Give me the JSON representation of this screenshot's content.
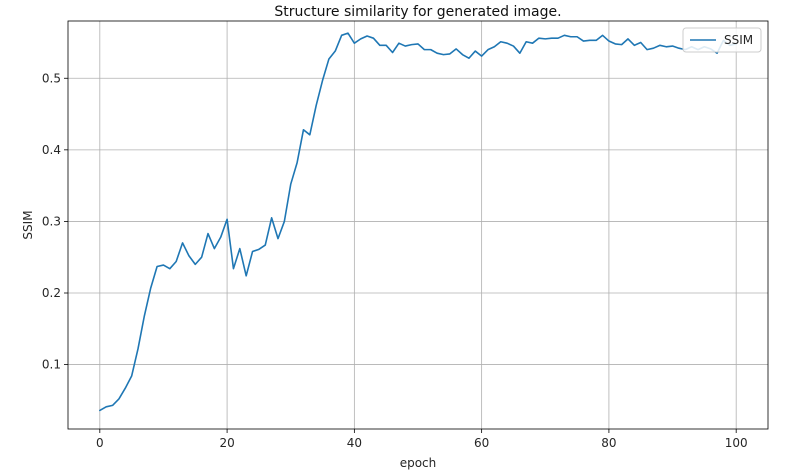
{
  "chart_data": {
    "type": "line",
    "title": "Structure similarity for generated image.",
    "xlabel": "epoch",
    "ylabel": "SSIM",
    "xlim": [
      -5,
      105
    ],
    "ylim": [
      0.01,
      0.58
    ],
    "xticks": [
      0,
      20,
      40,
      60,
      80,
      100
    ],
    "yticks": [
      0.1,
      0.2,
      0.3,
      0.4,
      0.5
    ],
    "grid": true,
    "legend_position": "top-right",
    "series": [
      {
        "name": "SSIM",
        "color": "#1f77b4",
        "x": [
          0,
          1,
          2,
          3,
          4,
          5,
          6,
          7,
          8,
          9,
          10,
          11,
          12,
          13,
          14,
          15,
          16,
          17,
          18,
          19,
          20,
          21,
          22,
          23,
          24,
          25,
          26,
          27,
          28,
          29,
          30,
          31,
          32,
          33,
          34,
          35,
          36,
          37,
          38,
          39,
          40,
          41,
          42,
          43,
          44,
          45,
          46,
          47,
          48,
          49,
          50,
          51,
          52,
          53,
          54,
          55,
          56,
          57,
          58,
          59,
          60,
          61,
          62,
          63,
          64,
          65,
          66,
          67,
          68,
          69,
          70,
          71,
          72,
          73,
          74,
          75,
          76,
          77,
          78,
          79,
          80,
          81,
          82,
          83,
          84,
          85,
          86,
          87,
          88,
          89,
          90,
          91,
          92,
          93,
          94,
          95,
          96,
          97,
          98,
          99,
          100
        ],
        "values": [
          0.036,
          0.041,
          0.043,
          0.052,
          0.067,
          0.084,
          0.122,
          0.168,
          0.207,
          0.237,
          0.239,
          0.234,
          0.244,
          0.27,
          0.252,
          0.24,
          0.25,
          0.283,
          0.262,
          0.278,
          0.303,
          0.234,
          0.262,
          0.224,
          0.258,
          0.261,
          0.267,
          0.305,
          0.276,
          0.3,
          0.352,
          0.382,
          0.428,
          0.421,
          0.462,
          0.497,
          0.527,
          0.538,
          0.56,
          0.563,
          0.549,
          0.555,
          0.559,
          0.556,
          0.546,
          0.546,
          0.536,
          0.549,
          0.545,
          0.547,
          0.548,
          0.54,
          0.54,
          0.535,
          0.533,
          0.534,
          0.541,
          0.533,
          0.528,
          0.538,
          0.531,
          0.54,
          0.544,
          0.551,
          0.549,
          0.545,
          0.535,
          0.551,
          0.549,
          0.556,
          0.555,
          0.556,
          0.556,
          0.56,
          0.558,
          0.558,
          0.552,
          0.553,
          0.553,
          0.56,
          0.552,
          0.548,
          0.547,
          0.555,
          0.546,
          0.55,
          0.54,
          0.542,
          0.546,
          0.544,
          0.545,
          0.542,
          0.54,
          0.544,
          0.54,
          0.544,
          0.541,
          0.535,
          0.553,
          0.546,
          0.548
        ]
      }
    ]
  }
}
